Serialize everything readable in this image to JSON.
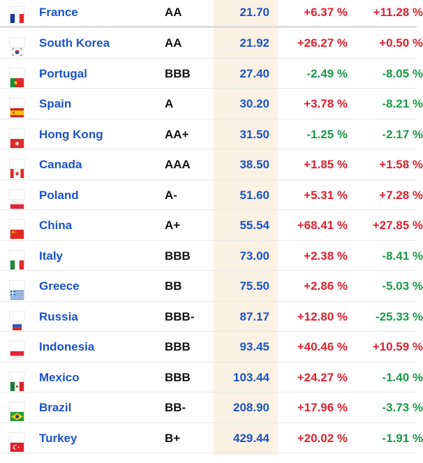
{
  "colors": {
    "country_link": "#1a53c9",
    "value_text": "#1a53c9",
    "value_column_bg": "#fbf2e4",
    "positive": "#e0222f",
    "negative": "#1a9a47"
  },
  "rows": [
    {
      "country": "France",
      "flag": "flag-france-icon",
      "rating": "AA",
      "value": "21.70",
      "change1": "+6.37 %",
      "change2": "+11.28 %"
    },
    {
      "country": "South Korea",
      "flag": "flag-south-korea-icon",
      "rating": "AA",
      "value": "21.92",
      "change1": "+26.27 %",
      "change2": "+0.50 %"
    },
    {
      "country": "Portugal",
      "flag": "flag-portugal-icon",
      "rating": "BBB",
      "value": "27.40",
      "change1": "-2.49 %",
      "change2": "-8.05 %"
    },
    {
      "country": "Spain",
      "flag": "flag-spain-icon",
      "rating": "A",
      "value": "30.20",
      "change1": "+3.78 %",
      "change2": "-8.21 %"
    },
    {
      "country": "Hong Kong",
      "flag": "flag-hong-kong-icon",
      "rating": "AA+",
      "value": "31.50",
      "change1": "-1.25 %",
      "change2": "-2.17 %"
    },
    {
      "country": "Canada",
      "flag": "flag-canada-icon",
      "rating": "AAA",
      "value": "38.50",
      "change1": "+1.85 %",
      "change2": "+1.58 %"
    },
    {
      "country": "Poland",
      "flag": "flag-poland-icon",
      "rating": "A-",
      "value": "51.60",
      "change1": "+5.31 %",
      "change2": "+7.28 %"
    },
    {
      "country": "China",
      "flag": "flag-china-icon",
      "rating": "A+",
      "value": "55.54",
      "change1": "+68.41 %",
      "change2": "+27.85 %"
    },
    {
      "country": "Italy",
      "flag": "flag-italy-icon",
      "rating": "BBB",
      "value": "73.00",
      "change1": "+2.38 %",
      "change2": "-8.41 %"
    },
    {
      "country": "Greece",
      "flag": "flag-greece-icon",
      "rating": "BB",
      "value": "75.50",
      "change1": "+2.86 %",
      "change2": "-5.03 %"
    },
    {
      "country": "Russia",
      "flag": "flag-russia-icon",
      "rating": "BBB-",
      "value": "87.17",
      "change1": "+12.80 %",
      "change2": "-25.33 %"
    },
    {
      "country": "Indonesia",
      "flag": "flag-indonesia-icon",
      "rating": "BBB",
      "value": "93.45",
      "change1": "+40.46 %",
      "change2": "+10.59 %"
    },
    {
      "country": "Mexico",
      "flag": "flag-mexico-icon",
      "rating": "BBB",
      "value": "103.44",
      "change1": "+24.27 %",
      "change2": "-1.40 %"
    },
    {
      "country": "Brazil",
      "flag": "flag-brazil-icon",
      "rating": "BB-",
      "value": "208.90",
      "change1": "+17.96 %",
      "change2": "-3.73 %"
    },
    {
      "country": "Turkey",
      "flag": "flag-turkey-icon",
      "rating": "B+",
      "value": "429.44",
      "change1": "+20.02 %",
      "change2": "-1.91 %"
    }
  ]
}
